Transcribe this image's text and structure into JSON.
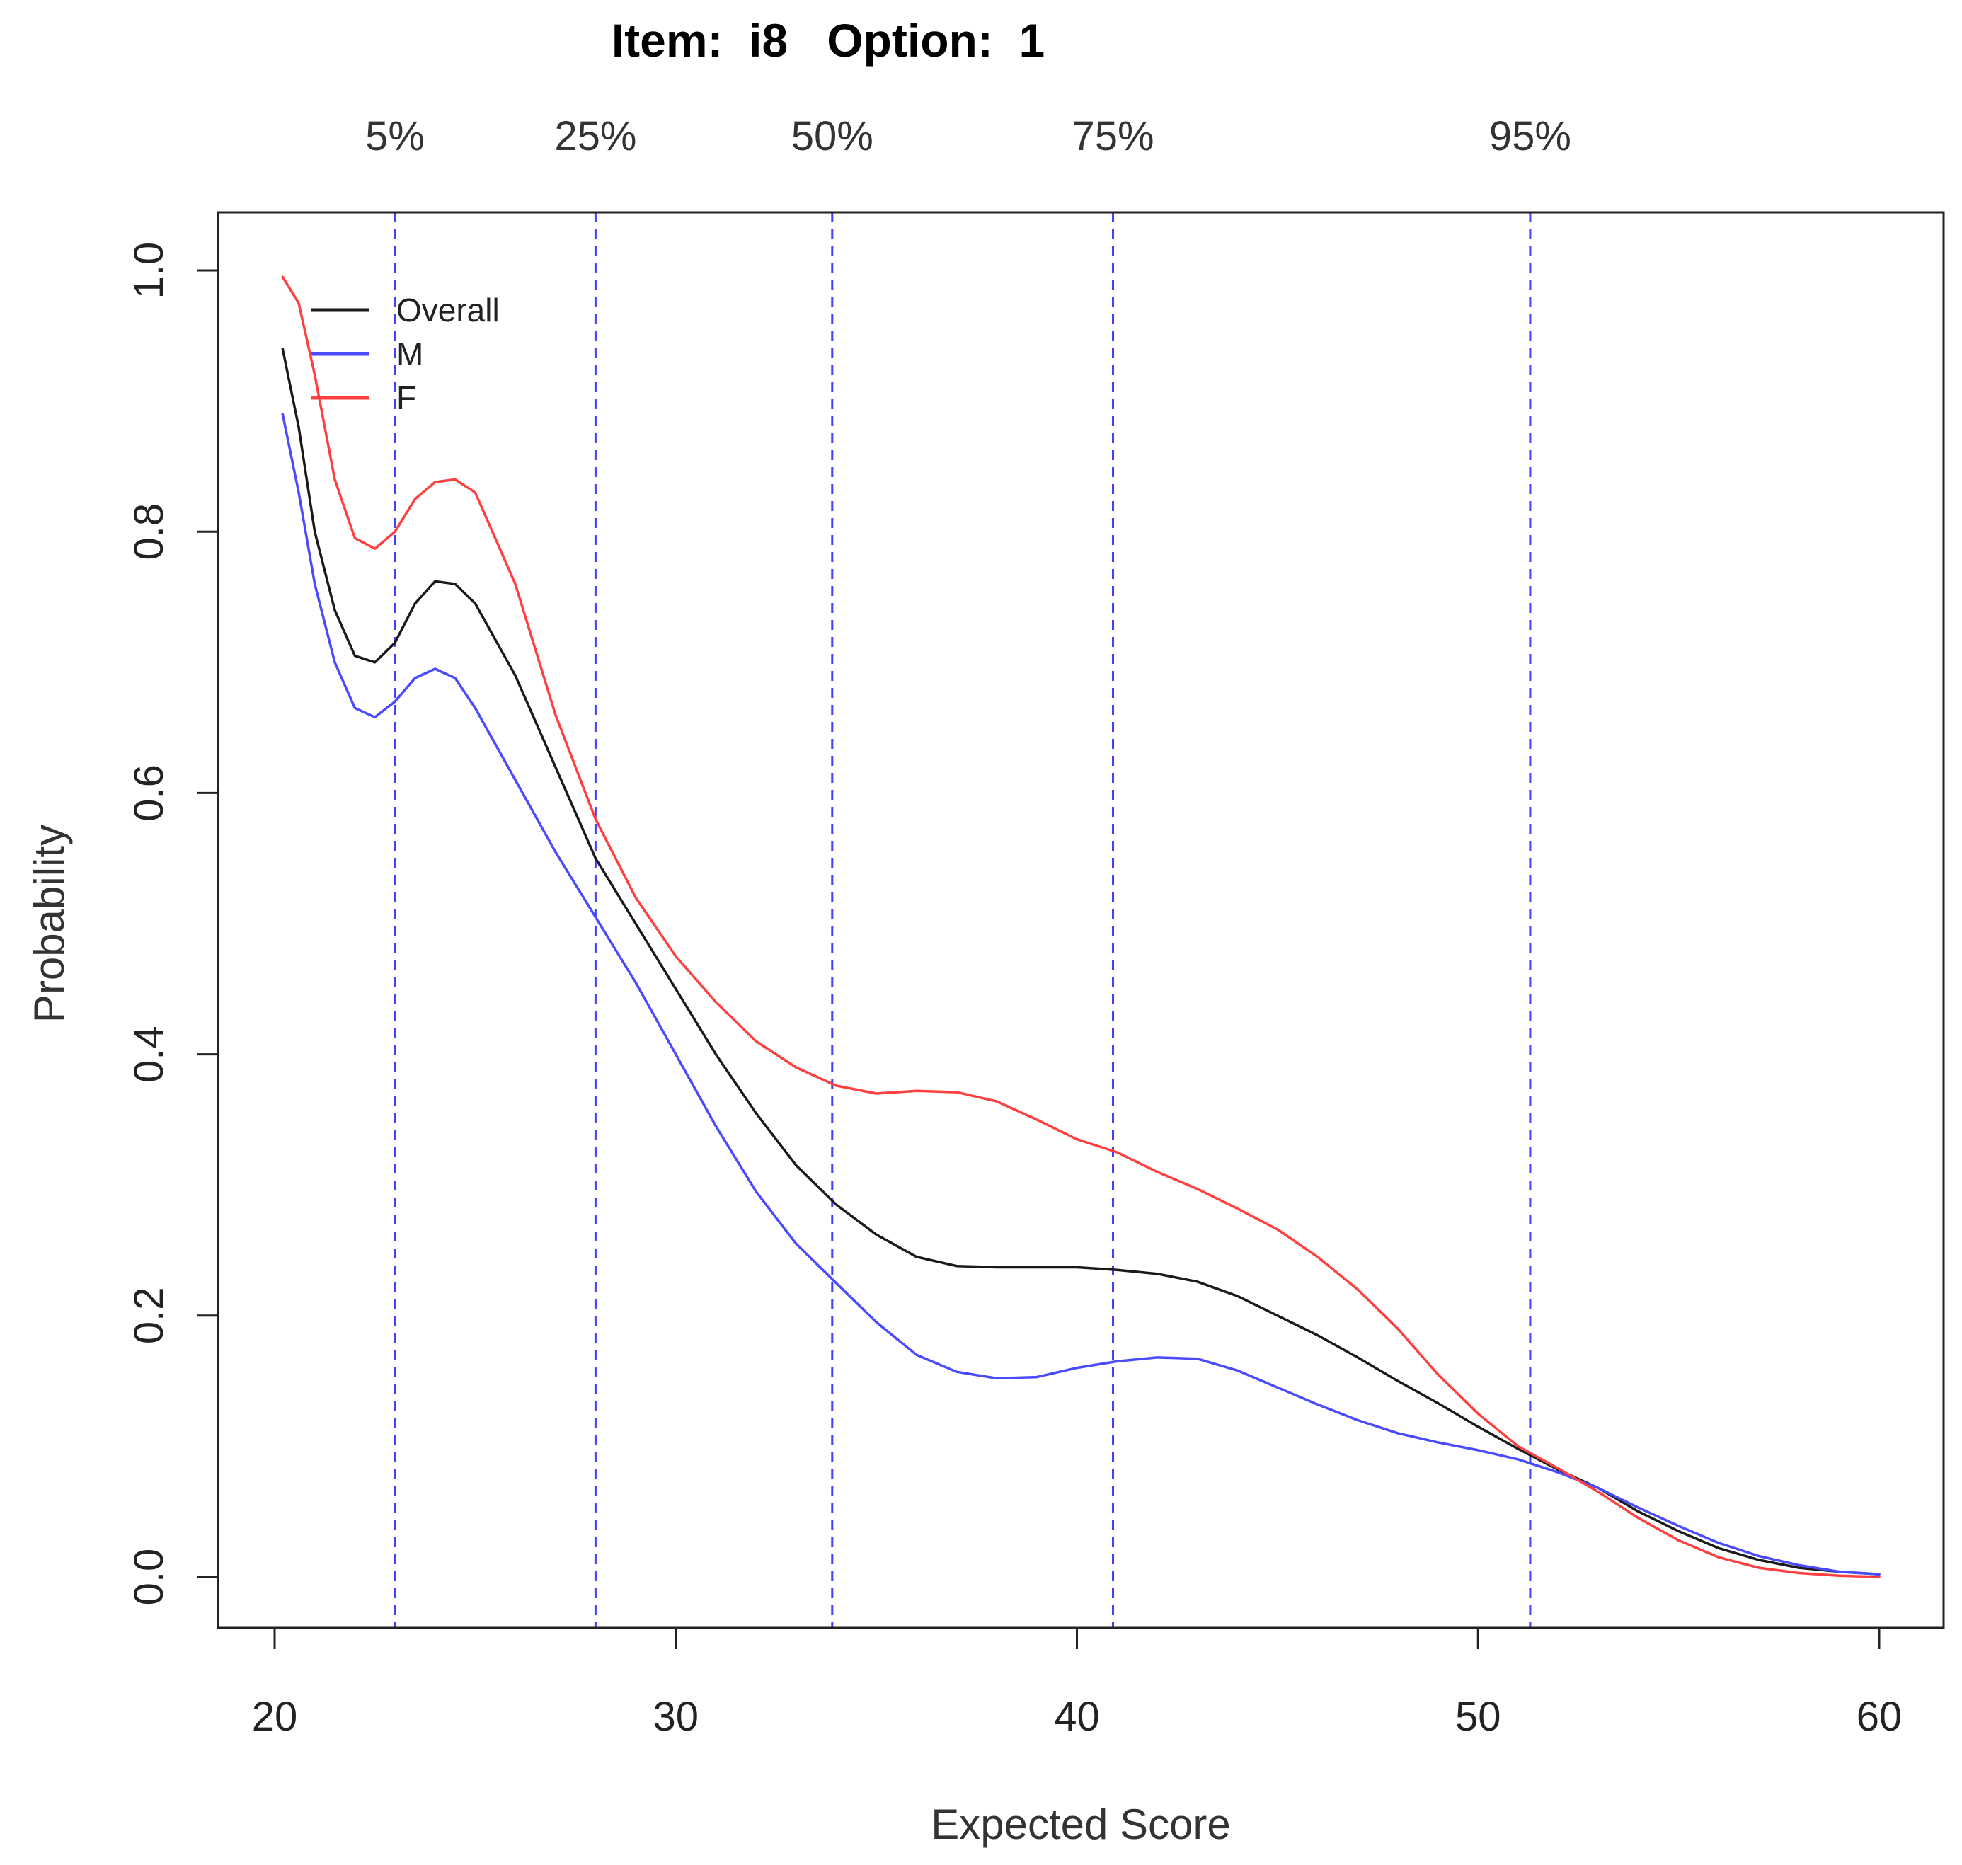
{
  "chart_data": {
    "type": "line",
    "title": "Item:  i8   Option:  1",
    "xlabel": "Expected Score",
    "ylabel": "Probability",
    "xlim": [
      20,
      60
    ],
    "ylim": [
      0,
      1
    ],
    "x_ticks": [
      20,
      30,
      40,
      50,
      60
    ],
    "x_tick_labels": [
      "20",
      "30",
      "40",
      "50",
      "60"
    ],
    "y_ticks": [
      0,
      0.2,
      0.4,
      0.6,
      0.8,
      1.0
    ],
    "y_tick_labels": [
      "0.0",
      "0.2",
      "0.4",
      "0.6",
      "0.8",
      "1.0"
    ],
    "grid": false,
    "legend_position": "top-left",
    "percentile_lines": [
      {
        "label": "5%",
        "x": 23.0
      },
      {
        "label": "25%",
        "x": 28.0
      },
      {
        "label": "50%",
        "x": 33.9
      },
      {
        "label": "75%",
        "x": 40.9
      },
      {
        "label": "95%",
        "x": 51.3
      }
    ],
    "percentile_line_color": "#4040ff",
    "series": [
      {
        "name": "Overall",
        "color": "#1a1a1a",
        "points": [
          [
            20.2,
            0.94
          ],
          [
            20.6,
            0.88
          ],
          [
            21.0,
            0.8
          ],
          [
            21.5,
            0.74
          ],
          [
            22.0,
            0.705
          ],
          [
            22.5,
            0.7
          ],
          [
            23.0,
            0.715
          ],
          [
            23.5,
            0.745
          ],
          [
            24.0,
            0.762
          ],
          [
            24.5,
            0.76
          ],
          [
            25.0,
            0.745
          ],
          [
            26.0,
            0.69
          ],
          [
            27.0,
            0.62
          ],
          [
            28.0,
            0.55
          ],
          [
            29.0,
            0.5
          ],
          [
            30.0,
            0.45
          ],
          [
            31.0,
            0.4
          ],
          [
            32.0,
            0.355
          ],
          [
            33.0,
            0.315
          ],
          [
            34.0,
            0.285
          ],
          [
            35.0,
            0.262
          ],
          [
            36.0,
            0.245
          ],
          [
            37.0,
            0.238
          ],
          [
            38.0,
            0.237
          ],
          [
            39.0,
            0.237
          ],
          [
            40.0,
            0.237
          ],
          [
            41.0,
            0.235
          ],
          [
            42.0,
            0.232
          ],
          [
            43.0,
            0.226
          ],
          [
            44.0,
            0.215
          ],
          [
            45.0,
            0.2
          ],
          [
            46.0,
            0.185
          ],
          [
            47.0,
            0.168
          ],
          [
            48.0,
            0.15
          ],
          [
            49.0,
            0.133
          ],
          [
            50.0,
            0.115
          ],
          [
            51.0,
            0.098
          ],
          [
            52.0,
            0.082
          ],
          [
            53.0,
            0.068
          ],
          [
            54.0,
            0.05
          ],
          [
            55.0,
            0.035
          ],
          [
            56.0,
            0.022
          ],
          [
            57.0,
            0.013
          ],
          [
            58.0,
            0.007
          ],
          [
            59.0,
            0.004
          ],
          [
            60.0,
            0.002
          ]
        ]
      },
      {
        "name": "M",
        "color": "#4a4aff",
        "points": [
          [
            20.2,
            0.89
          ],
          [
            20.6,
            0.83
          ],
          [
            21.0,
            0.76
          ],
          [
            21.5,
            0.7
          ],
          [
            22.0,
            0.665
          ],
          [
            22.5,
            0.658
          ],
          [
            23.0,
            0.67
          ],
          [
            23.5,
            0.688
          ],
          [
            24.0,
            0.695
          ],
          [
            24.5,
            0.688
          ],
          [
            25.0,
            0.665
          ],
          [
            26.0,
            0.61
          ],
          [
            27.0,
            0.555
          ],
          [
            28.0,
            0.505
          ],
          [
            29.0,
            0.455
          ],
          [
            30.0,
            0.4
          ],
          [
            31.0,
            0.345
          ],
          [
            32.0,
            0.295
          ],
          [
            33.0,
            0.255
          ],
          [
            34.0,
            0.225
          ],
          [
            35.0,
            0.195
          ],
          [
            36.0,
            0.17
          ],
          [
            37.0,
            0.157
          ],
          [
            38.0,
            0.152
          ],
          [
            39.0,
            0.153
          ],
          [
            40.0,
            0.16
          ],
          [
            41.0,
            0.165
          ],
          [
            42.0,
            0.168
          ],
          [
            43.0,
            0.167
          ],
          [
            44.0,
            0.158
          ],
          [
            45.0,
            0.145
          ],
          [
            46.0,
            0.132
          ],
          [
            47.0,
            0.12
          ],
          [
            48.0,
            0.11
          ],
          [
            49.0,
            0.103
          ],
          [
            50.0,
            0.097
          ],
          [
            51.0,
            0.09
          ],
          [
            52.0,
            0.08
          ],
          [
            53.0,
            0.068
          ],
          [
            54.0,
            0.053
          ],
          [
            55.0,
            0.039
          ],
          [
            56.0,
            0.026
          ],
          [
            57.0,
            0.016
          ],
          [
            58.0,
            0.009
          ],
          [
            59.0,
            0.004
          ],
          [
            60.0,
            0.002
          ]
        ]
      },
      {
        "name": "F",
        "color": "#ff4040",
        "points": [
          [
            20.2,
            0.995
          ],
          [
            20.6,
            0.975
          ],
          [
            21.0,
            0.92
          ],
          [
            21.5,
            0.84
          ],
          [
            22.0,
            0.795
          ],
          [
            22.5,
            0.787
          ],
          [
            23.0,
            0.8
          ],
          [
            23.5,
            0.825
          ],
          [
            24.0,
            0.838
          ],
          [
            24.5,
            0.84
          ],
          [
            25.0,
            0.83
          ],
          [
            26.0,
            0.76
          ],
          [
            27.0,
            0.66
          ],
          [
            28.0,
            0.58
          ],
          [
            29.0,
            0.52
          ],
          [
            30.0,
            0.475
          ],
          [
            31.0,
            0.44
          ],
          [
            32.0,
            0.41
          ],
          [
            33.0,
            0.39
          ],
          [
            34.0,
            0.376
          ],
          [
            35.0,
            0.37
          ],
          [
            36.0,
            0.372
          ],
          [
            37.0,
            0.371
          ],
          [
            38.0,
            0.364
          ],
          [
            39.0,
            0.35
          ],
          [
            40.0,
            0.335
          ],
          [
            41.0,
            0.325
          ],
          [
            42.0,
            0.31
          ],
          [
            43.0,
            0.297
          ],
          [
            44.0,
            0.282
          ],
          [
            45.0,
            0.266
          ],
          [
            46.0,
            0.245
          ],
          [
            47.0,
            0.22
          ],
          [
            48.0,
            0.19
          ],
          [
            49.0,
            0.155
          ],
          [
            50.0,
            0.125
          ],
          [
            51.0,
            0.1
          ],
          [
            52.0,
            0.083
          ],
          [
            53.0,
            0.065
          ],
          [
            54.0,
            0.045
          ],
          [
            55.0,
            0.028
          ],
          [
            56.0,
            0.015
          ],
          [
            57.0,
            0.007
          ],
          [
            58.0,
            0.003
          ],
          [
            59.0,
            0.001
          ],
          [
            60.0,
            0.0
          ]
        ]
      }
    ]
  }
}
